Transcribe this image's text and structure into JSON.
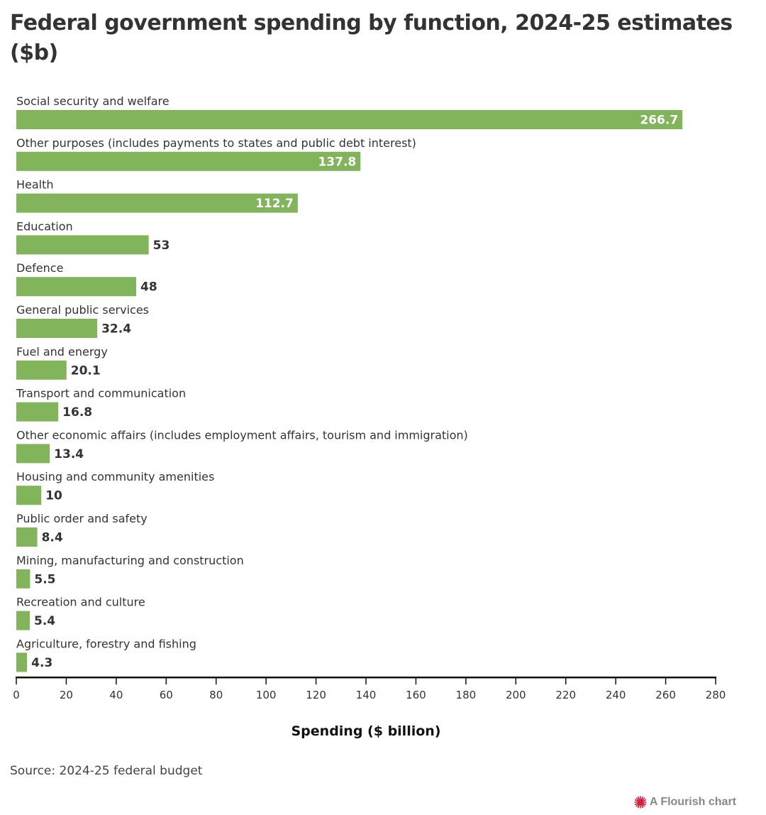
{
  "chart_data": {
    "type": "bar",
    "orientation": "horizontal",
    "title": "Federal government spending by function, 2024-25 estimates ($b)",
    "xlabel": "Spending ($ billion)",
    "ylabel": "",
    "xlim": [
      0,
      280
    ],
    "xticks": [
      0,
      20,
      40,
      60,
      80,
      100,
      120,
      140,
      160,
      180,
      200,
      220,
      240,
      260,
      280
    ],
    "grid": false,
    "bar_color": "#82b55b",
    "categories": [
      "Social security and welfare",
      "Other purposes (includes payments to states and public debt interest)",
      "Health",
      "Education",
      "Defence",
      "General public services",
      "Fuel and energy",
      "Transport and communication",
      "Other economic affairs (includes employment affairs, tourism and immigration)",
      "Housing and community amenities",
      "Public order and safety",
      "Mining, manufacturing and construction",
      "Recreation and culture",
      "Agriculture, forestry and fishing"
    ],
    "values": [
      266.7,
      137.8,
      112.7,
      53,
      48,
      32.4,
      20.1,
      16.8,
      13.4,
      10,
      8.4,
      5.5,
      5.4,
      4.3
    ],
    "value_labels": [
      "266.7",
      "137.8",
      "112.7",
      "53",
      "48",
      "32.4",
      "20.1",
      "16.8",
      "13.4",
      "10",
      "8.4",
      "5.5",
      "5.4",
      "4.3"
    ]
  },
  "footer": {
    "source": "Source: 2024-25 federal budget",
    "credit": "A Flourish chart"
  }
}
